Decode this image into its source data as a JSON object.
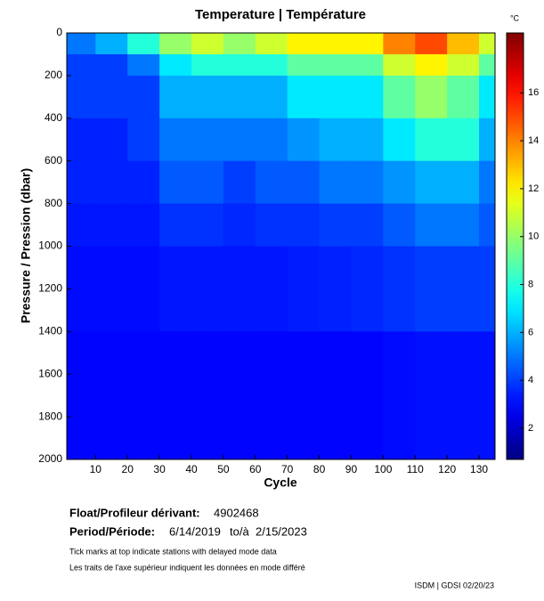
{
  "chart_data": {
    "type": "heatmap",
    "title": "Temperature | Température",
    "xlabel": "Cycle",
    "ylabel": "Pressure / Pression (dbar)",
    "colorbar_label": "°C",
    "xlim": [
      1,
      135
    ],
    "xticks": [
      10,
      20,
      30,
      40,
      50,
      60,
      70,
      80,
      90,
      100,
      110,
      120,
      130
    ],
    "ylim": [
      0,
      2000
    ],
    "y_inverted": true,
    "yticks": [
      0,
      200,
      400,
      600,
      800,
      1000,
      1200,
      1400,
      1600,
      1800,
      2000
    ],
    "clim": [
      0.7,
      18.5
    ],
    "cticks": [
      2,
      4,
      6,
      8,
      10,
      12,
      14,
      16
    ],
    "colormap": "jet",
    "xbins": [
      1,
      10,
      20,
      30,
      40,
      50,
      60,
      70,
      80,
      90,
      100,
      110,
      120,
      130,
      135
    ],
    "ybins": [
      0,
      100,
      200,
      400,
      600,
      800,
      1000,
      1400,
      2000
    ],
    "values": [
      [
        5,
        6,
        8,
        10,
        11,
        10,
        11,
        12,
        12,
        12,
        14,
        15,
        13,
        11
      ],
      [
        4,
        4,
        5,
        7,
        8,
        8,
        8,
        9,
        9,
        9,
        11,
        12,
        11,
        9
      ],
      [
        4,
        4,
        4,
        6,
        6,
        6,
        6,
        7,
        7,
        7,
        9,
        10,
        9,
        7
      ],
      [
        3.5,
        3.5,
        4,
        5,
        5,
        5,
        5,
        5.5,
        6,
        6,
        7,
        8,
        8,
        6
      ],
      [
        3.5,
        3.5,
        3.5,
        4.5,
        4.5,
        4,
        4.5,
        4.5,
        5,
        5,
        5.5,
        6,
        6,
        5
      ],
      [
        3.3,
        3.3,
        3.3,
        3.8,
        3.8,
        3.6,
        3.8,
        3.8,
        4,
        4,
        4.5,
        5,
        5,
        4.5
      ],
      [
        3.1,
        3.1,
        3.1,
        3.3,
        3.3,
        3.3,
        3.3,
        3.4,
        3.5,
        3.6,
        3.8,
        4,
        4,
        4
      ],
      [
        3,
        3,
        3,
        3,
        3,
        3,
        3,
        3,
        3,
        3,
        3.1,
        3.2,
        3.2,
        3.2
      ]
    ]
  },
  "info": {
    "float_label": "Float/Profileur dérivant:",
    "float_id": "4902468",
    "period_label": "Period/Période:",
    "start": "6/14/2019",
    "to": "to/à",
    "end": "2/15/2023",
    "note_en": "Tick marks at top indicate stations with delayed mode data",
    "note_fr": "Les traits de l'axe supérieur indiquent les données en mode différé",
    "footer": "ISDM | GDSI 02/20/23"
  }
}
